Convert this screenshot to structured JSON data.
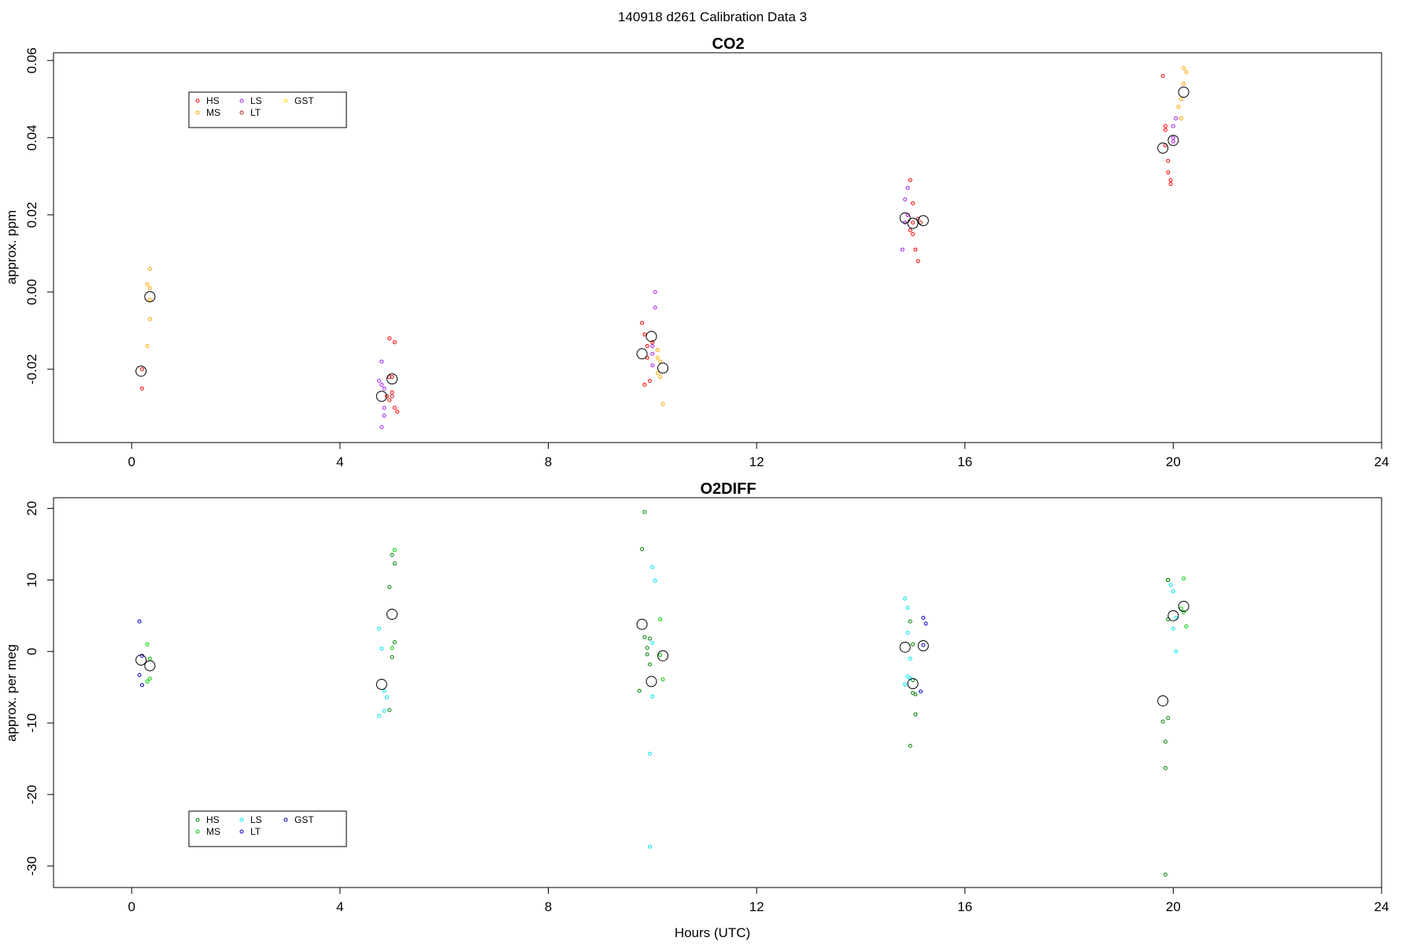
{
  "figure": {
    "title": "140918   d261   Calibration Data 3",
    "x_axis_label": "Hours (UTC)"
  },
  "chart_data": [
    {
      "type": "scatter",
      "title": "CO2",
      "xlabel": "",
      "ylabel": "approx. ppm",
      "xlim": [
        -1.5,
        24
      ],
      "ylim": [
        -0.039,
        0.062
      ],
      "xticks": [
        0,
        4,
        8,
        12,
        16,
        20,
        24
      ],
      "yticks": [
        -0.02,
        0.0,
        0.02,
        0.04,
        0.06
      ],
      "ytick_labels": [
        "-0.02",
        "0.00",
        "0.02",
        "0.04",
        "0.06"
      ],
      "grid": false,
      "legend": {
        "placement": "top-left",
        "columns": 3,
        "entries": [
          "HS",
          "MS",
          "LS",
          "LT",
          "GST"
        ]
      },
      "series": [
        {
          "name": "HS",
          "color": "#ff0000",
          "points": [
            [
              0.2,
              -0.02
            ],
            [
              0.2,
              -0.025
            ],
            [
              4.9,
              -0.027
            ],
            [
              4.95,
              -0.028
            ],
            [
              5.0,
              -0.026
            ],
            [
              5.05,
              -0.03
            ],
            [
              5.1,
              -0.031
            ],
            [
              4.95,
              -0.012
            ],
            [
              5.05,
              -0.013
            ],
            [
              5.0,
              -0.022
            ],
            [
              9.8,
              -0.008
            ],
            [
              9.85,
              -0.011
            ],
            [
              9.9,
              -0.014
            ],
            [
              9.9,
              -0.017
            ],
            [
              9.95,
              -0.023
            ],
            [
              9.85,
              -0.024
            ],
            [
              10.0,
              -0.013
            ],
            [
              14.9,
              0.02
            ],
            [
              14.95,
              0.016
            ],
            [
              15.0,
              0.015
            ],
            [
              15.05,
              0.011
            ],
            [
              15.1,
              0.008
            ],
            [
              15.0,
              0.023
            ],
            [
              14.95,
              0.029
            ],
            [
              15.0,
              0.018
            ],
            [
              19.8,
              0.056
            ],
            [
              19.85,
              0.043
            ],
            [
              19.85,
              0.042
            ],
            [
              19.85,
              0.038
            ],
            [
              19.9,
              0.034
            ],
            [
              19.9,
              0.031
            ],
            [
              19.95,
              0.029
            ],
            [
              19.95,
              0.028
            ]
          ]
        },
        {
          "name": "MS",
          "color": "#ffa500",
          "points": [
            [
              0.3,
              0.002
            ],
            [
              0.35,
              0.006
            ],
            [
              0.35,
              0.001
            ],
            [
              0.35,
              -0.002
            ],
            [
              0.35,
              -0.007
            ],
            [
              0.3,
              -0.014
            ],
            [
              10.1,
              -0.015
            ],
            [
              10.1,
              -0.017
            ],
            [
              10.15,
              -0.018
            ],
            [
              10.1,
              -0.021
            ],
            [
              10.15,
              -0.022
            ],
            [
              10.2,
              -0.029
            ],
            [
              20.1,
              0.048
            ],
            [
              20.15,
              0.045
            ],
            [
              20.15,
              0.05
            ],
            [
              20.2,
              0.054
            ],
            [
              20.2,
              0.058
            ],
            [
              20.25,
              0.057
            ]
          ]
        },
        {
          "name": "LS",
          "color": "#a020f0",
          "points": [
            [
              4.75,
              -0.023
            ],
            [
              4.8,
              -0.024
            ],
            [
              4.8,
              -0.018
            ],
            [
              4.85,
              -0.025
            ],
            [
              4.85,
              -0.03
            ],
            [
              4.85,
              -0.032
            ],
            [
              4.8,
              -0.035
            ],
            [
              10.0,
              -0.016
            ],
            [
              10.0,
              -0.014
            ],
            [
              10.05,
              0.0
            ],
            [
              10.05,
              -0.004
            ],
            [
              10.0,
              -0.019
            ],
            [
              14.8,
              0.011
            ],
            [
              14.85,
              0.018
            ],
            [
              14.85,
              0.024
            ],
            [
              14.9,
              0.027
            ],
            [
              14.9,
              0.02
            ],
            [
              20.0,
              0.04
            ],
            [
              20.0,
              0.043
            ],
            [
              20.05,
              0.045
            ],
            [
              20.0,
              0.039
            ]
          ]
        },
        {
          "name": "LT",
          "color": "#b22222",
          "points": [
            [
              4.95,
              -0.022
            ],
            [
              5.0,
              -0.027
            ],
            [
              15.1,
              0.019
            ],
            [
              15.15,
              0.018
            ]
          ]
        },
        {
          "name": "GST",
          "color": "#ffd700",
          "points": []
        }
      ],
      "means": [
        [
          0.18,
          -0.0205
        ],
        [
          0.35,
          -0.0012
        ],
        [
          4.8,
          -0.027
        ],
        [
          5.0,
          -0.0225
        ],
        [
          9.8,
          -0.016
        ],
        [
          9.98,
          -0.0115
        ],
        [
          10.2,
          -0.0197
        ],
        [
          14.85,
          0.0192
        ],
        [
          15.0,
          0.0178
        ],
        [
          15.2,
          0.0185
        ],
        [
          19.8,
          0.0373
        ],
        [
          20.0,
          0.0393
        ],
        [
          20.2,
          0.0518
        ]
      ]
    },
    {
      "type": "scatter",
      "title": "O2DIFF",
      "xlabel": "Hours (UTC)",
      "ylabel": "approx. per meg",
      "xlim": [
        -1.5,
        24
      ],
      "ylim": [
        -33,
        21.5
      ],
      "xticks": [
        0,
        4,
        8,
        12,
        16,
        20,
        24
      ],
      "yticks": [
        -30,
        -20,
        -10,
        0,
        10,
        20
      ],
      "ytick_labels": [
        "-30",
        "-20",
        "-10",
        "0",
        "10",
        "20"
      ],
      "grid": false,
      "legend": {
        "placement": "bottom-left",
        "columns": 3,
        "entries": [
          "HS",
          "MS",
          "LS",
          "LT",
          "GST"
        ]
      },
      "series": [
        {
          "name": "HS",
          "color": "#008000",
          "points": [
            [
              4.95,
              -8.2
            ],
            [
              5.0,
              13.5
            ],
            [
              5.05,
              12.3
            ],
            [
              4.95,
              9.0
            ],
            [
              5.0,
              -0.8
            ],
            [
              5.05,
              1.3
            ],
            [
              9.75,
              -5.5
            ],
            [
              9.8,
              14.3
            ],
            [
              9.85,
              19.5
            ],
            [
              9.9,
              0.5
            ],
            [
              9.95,
              -1.8
            ],
            [
              9.95,
              1.8
            ],
            [
              9.85,
              2.0
            ],
            [
              9.9,
              -0.4
            ],
            [
              14.95,
              4.2
            ],
            [
              15.0,
              -4.0
            ],
            [
              15.0,
              -5.8
            ],
            [
              15.05,
              -6.0
            ],
            [
              15.05,
              -8.8
            ],
            [
              14.95,
              -13.2
            ],
            [
              15.0,
              1.0
            ],
            [
              19.8,
              -9.8
            ],
            [
              19.85,
              -12.6
            ],
            [
              19.85,
              -16.3
            ],
            [
              19.9,
              10.0
            ],
            [
              19.9,
              10.0
            ],
            [
              19.85,
              -31.2
            ],
            [
              19.9,
              -9.3
            ],
            [
              19.9,
              4.5
            ]
          ]
        },
        {
          "name": "MS",
          "color": "#00cc00",
          "points": [
            [
              0.3,
              1.0
            ],
            [
              0.35,
              -1.0
            ],
            [
              0.35,
              -3.8
            ],
            [
              0.3,
              -4.2
            ],
            [
              5.05,
              14.2
            ],
            [
              5.0,
              0.5
            ],
            [
              10.15,
              4.5
            ],
            [
              10.2,
              -3.9
            ],
            [
              10.15,
              -0.5
            ],
            [
              20.2,
              10.2
            ],
            [
              20.25,
              3.5
            ],
            [
              20.2,
              5.5
            ],
            [
              20.15,
              6.0
            ]
          ]
        },
        {
          "name": "LS",
          "color": "#00e5ee",
          "points": [
            [
              4.75,
              3.2
            ],
            [
              4.8,
              0.4
            ],
            [
              4.85,
              -5.5
            ],
            [
              4.9,
              -6.4
            ],
            [
              4.85,
              -8.3
            ],
            [
              4.75,
              -9.0
            ],
            [
              10.0,
              11.8
            ],
            [
              10.05,
              9.9
            ],
            [
              10.0,
              -6.3
            ],
            [
              9.95,
              -14.3
            ],
            [
              9.95,
              -27.3
            ],
            [
              10.0,
              1.2
            ],
            [
              14.85,
              7.4
            ],
            [
              14.9,
              6.1
            ],
            [
              14.9,
              2.6
            ],
            [
              14.95,
              -1.0
            ],
            [
              14.9,
              -3.5
            ],
            [
              14.95,
              -3.8
            ],
            [
              14.85,
              -4.6
            ],
            [
              19.95,
              9.3
            ],
            [
              20.0,
              8.4
            ],
            [
              20.05,
              4.7
            ],
            [
              20.0,
              3.2
            ],
            [
              20.05,
              0.0
            ]
          ]
        },
        {
          "name": "LT",
          "color": "#0000cd",
          "points": [
            [
              0.15,
              4.2
            ],
            [
              0.2,
              -0.6
            ],
            [
              0.15,
              -3.3
            ],
            [
              0.2,
              -4.7
            ],
            [
              15.2,
              4.7
            ],
            [
              15.25,
              3.9
            ],
            [
              15.15,
              -5.6
            ],
            [
              15.2,
              0.9
            ]
          ]
        },
        {
          "name": "GST",
          "color": "#00008b",
          "points": []
        }
      ],
      "means": [
        [
          0.18,
          -1.2
        ],
        [
          0.35,
          -2.0
        ],
        [
          4.8,
          -4.6
        ],
        [
          5.0,
          5.2
        ],
        [
          9.8,
          3.8
        ],
        [
          9.98,
          -4.2
        ],
        [
          10.2,
          -0.6
        ],
        [
          14.85,
          0.6
        ],
        [
          15.0,
          -4.5
        ],
        [
          15.2,
          0.8
        ],
        [
          19.8,
          -6.9
        ],
        [
          20.0,
          5.0
        ],
        [
          20.2,
          6.3
        ]
      ]
    }
  ]
}
